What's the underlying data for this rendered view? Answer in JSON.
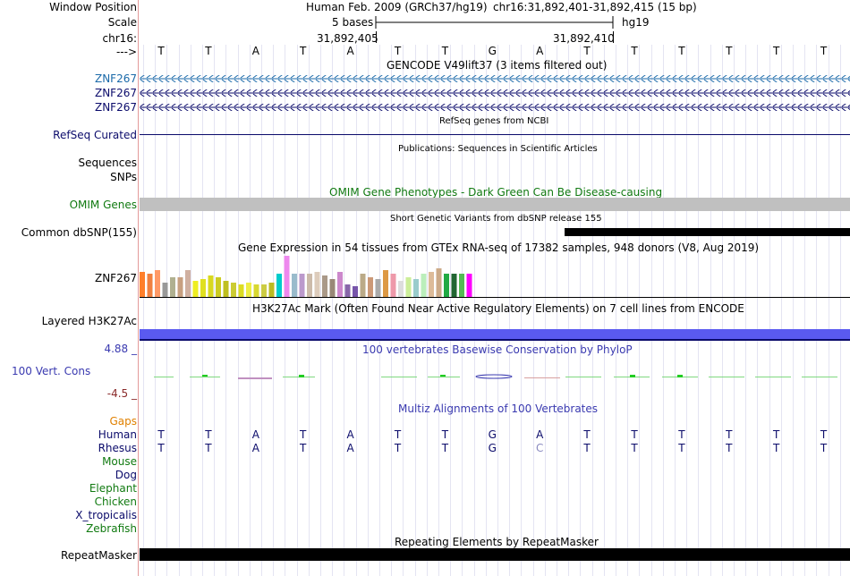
{
  "position": {
    "label": "Window Position",
    "assembly": "Human Feb. 2009 (GRCh37/hg19)",
    "range": "chr16:31,892,401-31,892,415 (15 bp)"
  },
  "scale": {
    "label": "Scale",
    "size": "5 bases",
    "db": "hg19"
  },
  "ruler": {
    "chrom_label": "chr16:",
    "tick1": "31,892,405",
    "tick2": "31,892,410"
  },
  "sequence": {
    "strand_label": "--->",
    "bases": [
      "T",
      "T",
      "A",
      "T",
      "A",
      "T",
      "T",
      "G",
      "A",
      "T",
      "T",
      "T",
      "T",
      "T",
      "T"
    ]
  },
  "gencode": {
    "title": "GENCODE V49lift37 (3 items filtered out)",
    "genes": [
      "ZNF267",
      "ZNF267",
      "ZNF267"
    ]
  },
  "refseq": {
    "title": "RefSeq genes from NCBI",
    "label": "RefSeq Curated"
  },
  "publications": {
    "title": "Publications: Sequences in Scientific Articles",
    "labels": [
      "Sequences",
      "SNPs"
    ]
  },
  "omim": {
    "title": "OMIM Gene Phenotypes - Dark Green Can Be Disease-causing",
    "label": "OMIM Genes"
  },
  "dbsnp": {
    "title": "Short Genetic Variants from dbSNP release 155",
    "label": "Common dbSNP(155)"
  },
  "gtex": {
    "title": "Gene Expression in 54 tissues from GTEx RNA-seq of 17382 samples, 948 donors (V8, Aug 2019)",
    "label": "ZNF267"
  },
  "h3k27ac": {
    "title": "H3K27Ac Mark (Often Found Near Active Regulatory Elements) on 7 cell lines from ENCODE",
    "label": "Layered H3K27Ac"
  },
  "conservation": {
    "title": "100 vertebrates Basewise Conservation by PhyloP",
    "label": "100 Vert. Cons",
    "max": "4.88 _",
    "min": "-4.5 _"
  },
  "multiz": {
    "title": "Multiz Alignments of 100 Vertebrates",
    "gaps_label": "Gaps",
    "species": [
      {
        "name": "Human",
        "bases": [
          "T",
          "T",
          "A",
          "T",
          "A",
          "T",
          "T",
          "G",
          "A",
          "T",
          "T",
          "T",
          "T",
          "T",
          "T"
        ]
      },
      {
        "name": "Rhesus",
        "bases": [
          "T",
          "T",
          "A",
          "T",
          "A",
          "T",
          "T",
          "G",
          "C",
          "T",
          "T",
          "T",
          "T",
          "T",
          "T"
        ]
      },
      {
        "name": "Mouse",
        "bases": []
      },
      {
        "name": "Dog",
        "bases": []
      },
      {
        "name": "Elephant",
        "bases": []
      },
      {
        "name": "Chicken",
        "bases": []
      },
      {
        "name": "X_tropicalis",
        "bases": []
      },
      {
        "name": "Zebrafish",
        "bases": []
      }
    ]
  },
  "repeatmasker": {
    "title": "Repeating Elements by RepeatMasker",
    "label": "RepeatMasker"
  },
  "colors": {
    "navy": "#0b0b6b",
    "green": "#117a11",
    "blue": "#1b6aa9",
    "omim_gray": "#c0c0c0",
    "h3k27ac": "#5a5af0",
    "conservation_blue": "#3a3ab0",
    "conservation_red": "#8a2a2a",
    "gaps": "#e08000"
  }
}
